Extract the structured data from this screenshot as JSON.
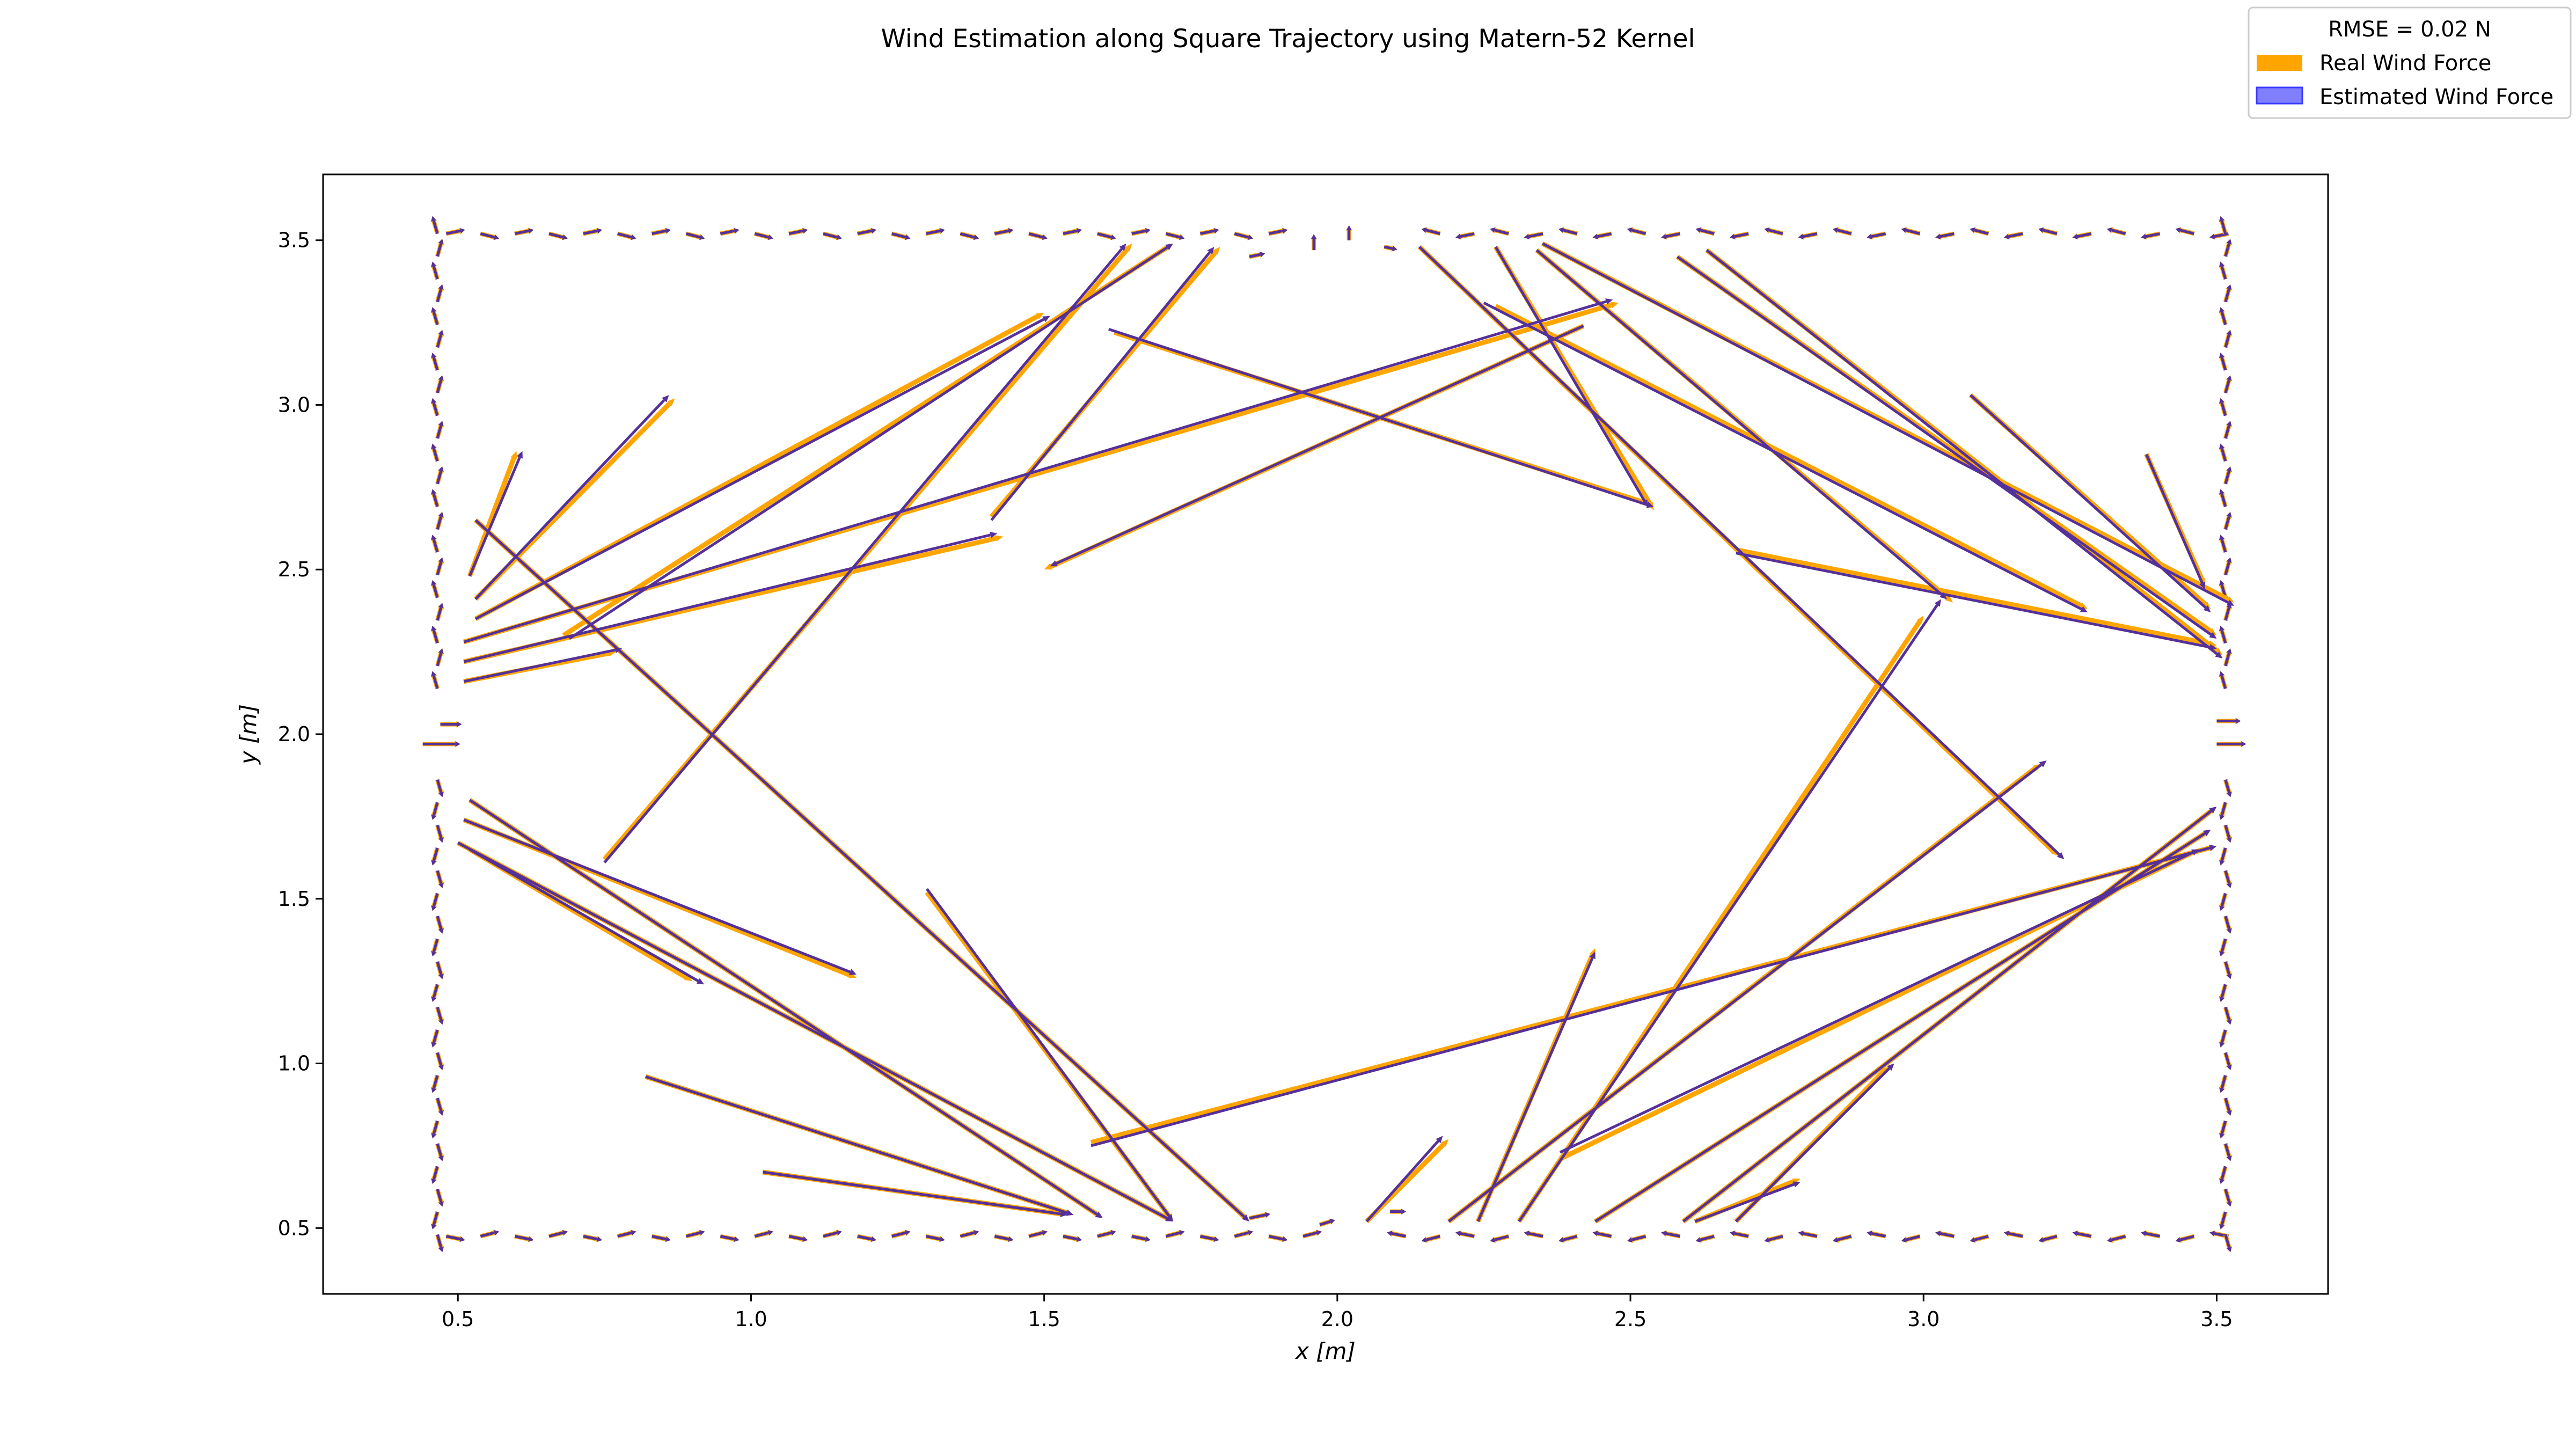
{
  "chart_data": {
    "type": "quiver",
    "title": "Wind Estimation along Square Trajectory using Matern-52 Kernel",
    "xlabel": "x [m]",
    "ylabel": "y [m]",
    "xlim": [
      0.27,
      3.69
    ],
    "ylim": [
      0.3,
      3.7
    ],
    "xticks": [
      0.5,
      1.0,
      1.5,
      2.0,
      2.5,
      3.0,
      3.5
    ],
    "yticks": [
      0.5,
      1.0,
      1.5,
      2.0,
      2.5,
      3.0,
      3.5
    ],
    "xtick_labels": [
      "0.5",
      "1.0",
      "1.5",
      "2.0",
      "2.5",
      "3.0",
      "3.5"
    ],
    "ytick_labels": [
      "0.5",
      "1.0",
      "1.5",
      "2.0",
      "2.5",
      "3.0",
      "3.5"
    ],
    "grid": false,
    "legend": {
      "placement": "top-right",
      "header": "RMSE = 0.02 N",
      "entries": [
        {
          "label": "Real Wind Force",
          "color": "#ffa500"
        },
        {
          "label": "Estimated Wind Force",
          "color": "#8080ff"
        }
      ]
    },
    "colors": {
      "real": "#ffa500",
      "estimated": "#3a3aff",
      "overlap": "#55309a"
    },
    "series": [
      {
        "name": "Real Wind Force",
        "vectors": [
          {
            "x0": 0.52,
            "y0": 2.48,
            "x1": 0.6,
            "y1": 2.86
          },
          {
            "x0": 0.53,
            "y0": 2.41,
            "x1": 0.87,
            "y1": 3.02
          },
          {
            "x0": 0.53,
            "y0": 2.35,
            "x1": 1.5,
            "y1": 3.28
          },
          {
            "x0": 0.51,
            "y0": 2.28,
            "x1": 2.48,
            "y1": 3.31
          },
          {
            "x0": 0.51,
            "y0": 2.22,
            "x1": 1.43,
            "y1": 2.6
          },
          {
            "x0": 0.51,
            "y0": 2.16,
            "x1": 0.77,
            "y1": 2.25
          },
          {
            "x0": 0.51,
            "y0": 1.74,
            "x1": 1.18,
            "y1": 1.26
          },
          {
            "x0": 0.52,
            "y0": 1.65,
            "x1": 0.9,
            "y1": 1.25
          },
          {
            "x0": 0.5,
            "y0": 1.67,
            "x1": 1.72,
            "y1": 0.52
          },
          {
            "x0": 0.52,
            "y0": 1.8,
            "x1": 1.6,
            "y1": 0.53
          },
          {
            "x0": 0.53,
            "y0": 2.65,
            "x1": 1.85,
            "y1": 0.52
          },
          {
            "x0": 0.68,
            "y0": 2.3,
            "x1": 1.72,
            "y1": 3.49
          },
          {
            "x0": 0.75,
            "y0": 1.62,
            "x1": 1.65,
            "y1": 3.49
          },
          {
            "x0": 1.41,
            "y0": 2.66,
            "x1": 1.8,
            "y1": 3.48
          },
          {
            "x0": 1.62,
            "y0": 3.22,
            "x1": 2.53,
            "y1": 2.7
          },
          {
            "x0": 2.27,
            "y0": 3.3,
            "x1": 3.28,
            "y1": 2.38
          },
          {
            "x0": 2.42,
            "y0": 3.24,
            "x1": 1.5,
            "y1": 2.5
          },
          {
            "x0": 2.58,
            "y0": 3.45,
            "x1": 3.5,
            "y1": 2.3
          },
          {
            "x0": 2.63,
            "y0": 3.47,
            "x1": 3.51,
            "y1": 2.24
          },
          {
            "x0": 2.35,
            "y0": 3.49,
            "x1": 3.53,
            "y1": 2.4
          },
          {
            "x0": 2.14,
            "y0": 3.48,
            "x1": 3.23,
            "y1": 1.63
          },
          {
            "x0": 2.27,
            "y0": 3.48,
            "x1": 2.54,
            "y1": 2.68
          },
          {
            "x0": 2.34,
            "y0": 3.47,
            "x1": 3.05,
            "y1": 2.4
          },
          {
            "x0": 2.68,
            "y0": 2.56,
            "x1": 3.5,
            "y1": 2.27
          },
          {
            "x0": 3.38,
            "y0": 2.85,
            "x1": 3.48,
            "y1": 2.45
          },
          {
            "x0": 3.08,
            "y0": 3.03,
            "x1": 3.49,
            "y1": 2.38
          },
          {
            "x0": 2.59,
            "y0": 0.52,
            "x1": 3.5,
            "y1": 1.78
          },
          {
            "x0": 2.44,
            "y0": 0.52,
            "x1": 3.49,
            "y1": 1.71
          },
          {
            "x0": 2.38,
            "y0": 0.71,
            "x1": 3.47,
            "y1": 1.65
          },
          {
            "x0": 2.31,
            "y0": 0.52,
            "x1": 3.0,
            "y1": 2.36
          },
          {
            "x0": 2.24,
            "y0": 0.52,
            "x1": 2.44,
            "y1": 1.35
          },
          {
            "x0": 2.19,
            "y0": 0.52,
            "x1": 3.2,
            "y1": 1.91
          },
          {
            "x0": 1.58,
            "y0": 0.76,
            "x1": 3.5,
            "y1": 1.66
          },
          {
            "x0": 2.68,
            "y0": 0.52,
            "x1": 2.94,
            "y1": 0.99
          },
          {
            "x0": 2.61,
            "y0": 0.52,
            "x1": 2.79,
            "y1": 0.65
          },
          {
            "x0": 2.05,
            "y0": 0.52,
            "x1": 2.19,
            "y1": 0.77
          },
          {
            "x0": 1.3,
            "y0": 1.52,
            "x1": 1.72,
            "y1": 0.52
          },
          {
            "x0": 0.82,
            "y0": 0.96,
            "x1": 1.55,
            "y1": 0.54
          },
          {
            "x0": 1.02,
            "y0": 0.67,
            "x1": 1.54,
            "y1": 0.54
          }
        ]
      },
      {
        "name": "Estimated Wind Force",
        "vectors": [
          {
            "x0": 0.52,
            "y0": 2.48,
            "x1": 0.61,
            "y1": 2.86
          },
          {
            "x0": 0.53,
            "y0": 2.41,
            "x1": 0.86,
            "y1": 3.03
          },
          {
            "x0": 0.53,
            "y0": 2.35,
            "x1": 1.51,
            "y1": 3.27
          },
          {
            "x0": 0.51,
            "y0": 2.28,
            "x1": 2.47,
            "y1": 3.32
          },
          {
            "x0": 0.51,
            "y0": 2.22,
            "x1": 1.42,
            "y1": 2.61
          },
          {
            "x0": 0.51,
            "y0": 2.16,
            "x1": 0.78,
            "y1": 2.26
          },
          {
            "x0": 0.51,
            "y0": 1.74,
            "x1": 1.18,
            "y1": 1.27
          },
          {
            "x0": 0.52,
            "y0": 1.65,
            "x1": 0.92,
            "y1": 1.24
          },
          {
            "x0": 0.5,
            "y0": 1.67,
            "x1": 1.72,
            "y1": 0.52
          },
          {
            "x0": 0.52,
            "y0": 1.8,
            "x1": 1.6,
            "y1": 0.53
          },
          {
            "x0": 0.53,
            "y0": 2.65,
            "x1": 1.85,
            "y1": 0.52
          },
          {
            "x0": 0.69,
            "y0": 2.29,
            "x1": 1.72,
            "y1": 3.49
          },
          {
            "x0": 0.75,
            "y0": 1.61,
            "x1": 1.64,
            "y1": 3.49
          },
          {
            "x0": 1.41,
            "y0": 2.65,
            "x1": 1.79,
            "y1": 3.48
          },
          {
            "x0": 1.61,
            "y0": 3.23,
            "x1": 2.54,
            "y1": 2.69
          },
          {
            "x0": 2.25,
            "y0": 3.31,
            "x1": 3.28,
            "y1": 2.37
          },
          {
            "x0": 2.42,
            "y0": 3.24,
            "x1": 1.51,
            "y1": 2.51
          },
          {
            "x0": 2.58,
            "y0": 3.45,
            "x1": 3.5,
            "y1": 2.29
          },
          {
            "x0": 2.63,
            "y0": 3.47,
            "x1": 3.51,
            "y1": 2.23
          },
          {
            "x0": 2.35,
            "y0": 3.49,
            "x1": 3.53,
            "y1": 2.39
          },
          {
            "x0": 2.14,
            "y0": 3.48,
            "x1": 3.24,
            "y1": 1.62
          },
          {
            "x0": 2.27,
            "y0": 3.48,
            "x1": 2.53,
            "y1": 2.69
          },
          {
            "x0": 2.34,
            "y0": 3.47,
            "x1": 3.04,
            "y1": 2.41
          },
          {
            "x0": 2.68,
            "y0": 2.55,
            "x1": 3.5,
            "y1": 2.26
          },
          {
            "x0": 3.38,
            "y0": 2.85,
            "x1": 3.48,
            "y1": 2.44
          },
          {
            "x0": 3.08,
            "y0": 3.03,
            "x1": 3.49,
            "y1": 2.37
          },
          {
            "x0": 2.59,
            "y0": 0.52,
            "x1": 3.5,
            "y1": 1.78
          },
          {
            "x0": 2.44,
            "y0": 0.52,
            "x1": 3.49,
            "y1": 1.71
          },
          {
            "x0": 2.38,
            "y0": 0.73,
            "x1": 3.47,
            "y1": 1.65
          },
          {
            "x0": 2.31,
            "y0": 0.52,
            "x1": 3.03,
            "y1": 2.41
          },
          {
            "x0": 2.24,
            "y0": 0.52,
            "x1": 2.44,
            "y1": 1.34
          },
          {
            "x0": 2.19,
            "y0": 0.52,
            "x1": 3.21,
            "y1": 1.92
          },
          {
            "x0": 1.58,
            "y0": 0.75,
            "x1": 3.5,
            "y1": 1.66
          },
          {
            "x0": 2.68,
            "y0": 0.52,
            "x1": 2.95,
            "y1": 1.0
          },
          {
            "x0": 2.61,
            "y0": 0.52,
            "x1": 2.79,
            "y1": 0.64
          },
          {
            "x0": 2.05,
            "y0": 0.52,
            "x1": 2.18,
            "y1": 0.78
          },
          {
            "x0": 1.3,
            "y0": 1.53,
            "x1": 1.72,
            "y1": 0.52
          },
          {
            "x0": 0.82,
            "y0": 0.96,
            "x1": 1.55,
            "y1": 0.54
          },
          {
            "x0": 1.02,
            "y0": 0.67,
            "x1": 1.54,
            "y1": 0.54
          }
        ]
      }
    ]
  }
}
